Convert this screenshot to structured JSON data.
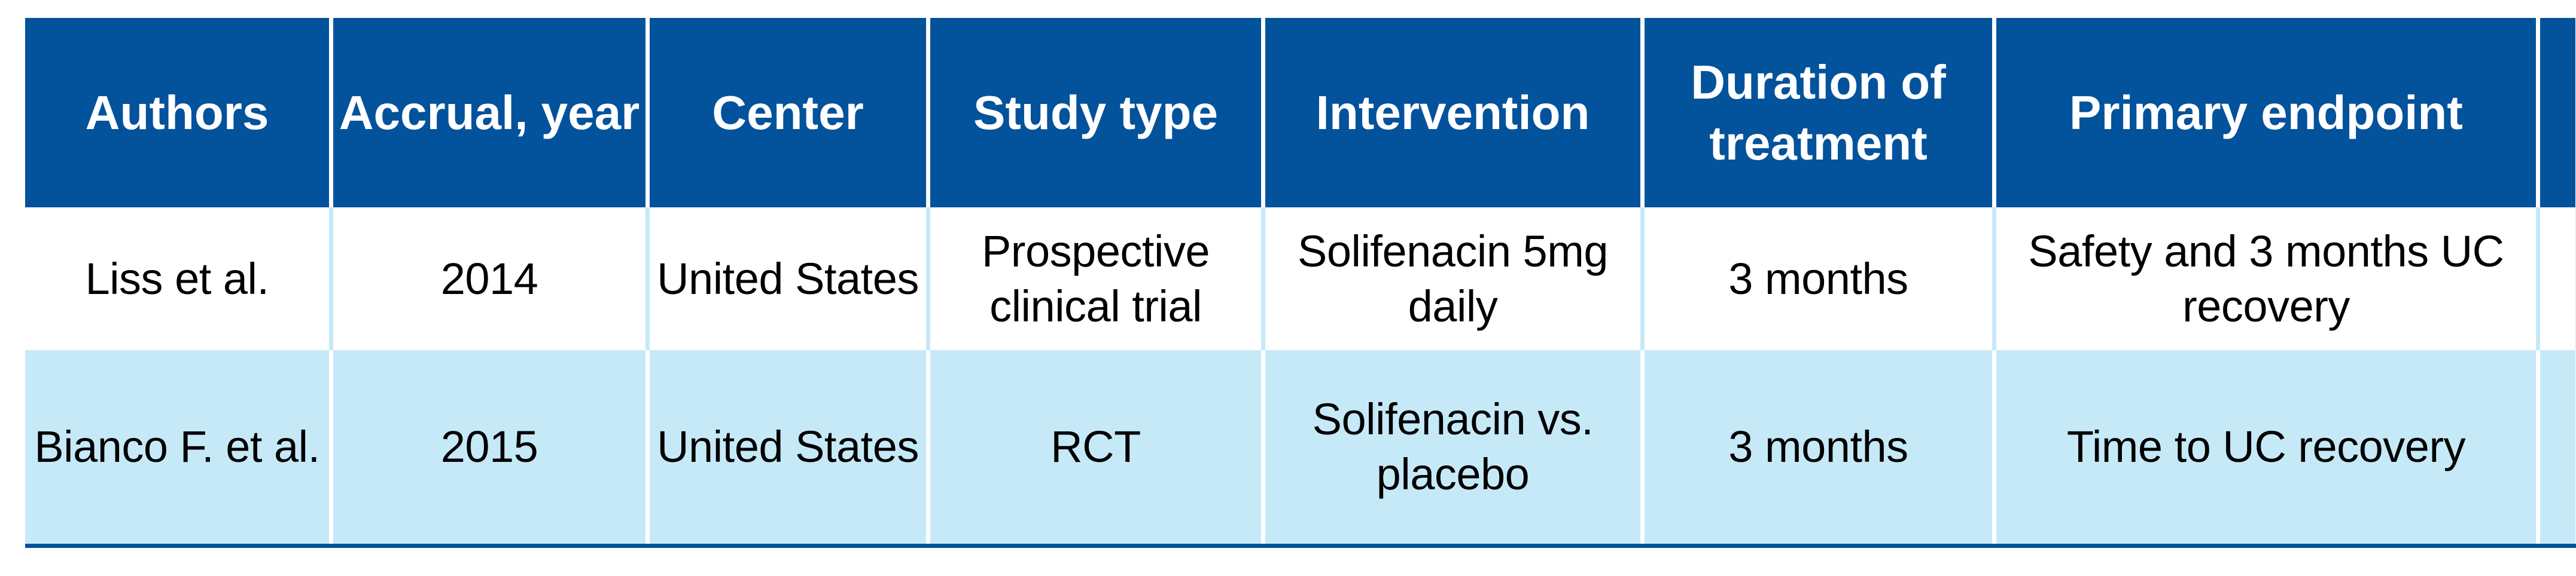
{
  "colors": {
    "header_bg": "#03529c",
    "header_text": "#ffffff",
    "row_white_bg": "#ffffff",
    "row_alt_bg": "#c6e9f8",
    "divider_on_white_row": "#c6e9f8",
    "divider_on_alt_row": "#ffffff",
    "bottom_rule": "#03529c",
    "body_text": "#000000"
  },
  "table": {
    "header": [
      "Authors",
      "Accrual, year",
      "Center",
      "Study type",
      "Intervention",
      "Duration of\ntreatment",
      "Primary endpoint",
      ""
    ],
    "rows": [
      [
        "Liss et al.",
        "2014",
        "United States",
        "Prospective\nclinical trial",
        "Solifenacin 5mg\ndaily",
        "3 months",
        "Safety and 3 months UC\nrecovery",
        ""
      ],
      [
        "Bianco F. et al.",
        "2015",
        "United States",
        "RCT",
        "Solifenacin vs.\nplacebo",
        "3 months",
        "Time to UC recovery",
        ""
      ]
    ]
  },
  "chart_data": {
    "type": "table",
    "title": "",
    "columns": [
      "Authors",
      "Accrual, year",
      "Center",
      "Study type",
      "Intervention",
      "Duration of treatment",
      "Primary endpoint"
    ],
    "rows": [
      [
        "Liss et al.",
        "2014",
        "United States",
        "Prospective clinical trial",
        "Solifenacin 5mg daily",
        "3 months",
        "Safety and 3 months UC recovery"
      ],
      [
        "Bianco F. et al.",
        "2015",
        "United States",
        "RCT",
        "Solifenacin vs. placebo",
        "3 months",
        "Time to UC recovery"
      ]
    ]
  }
}
